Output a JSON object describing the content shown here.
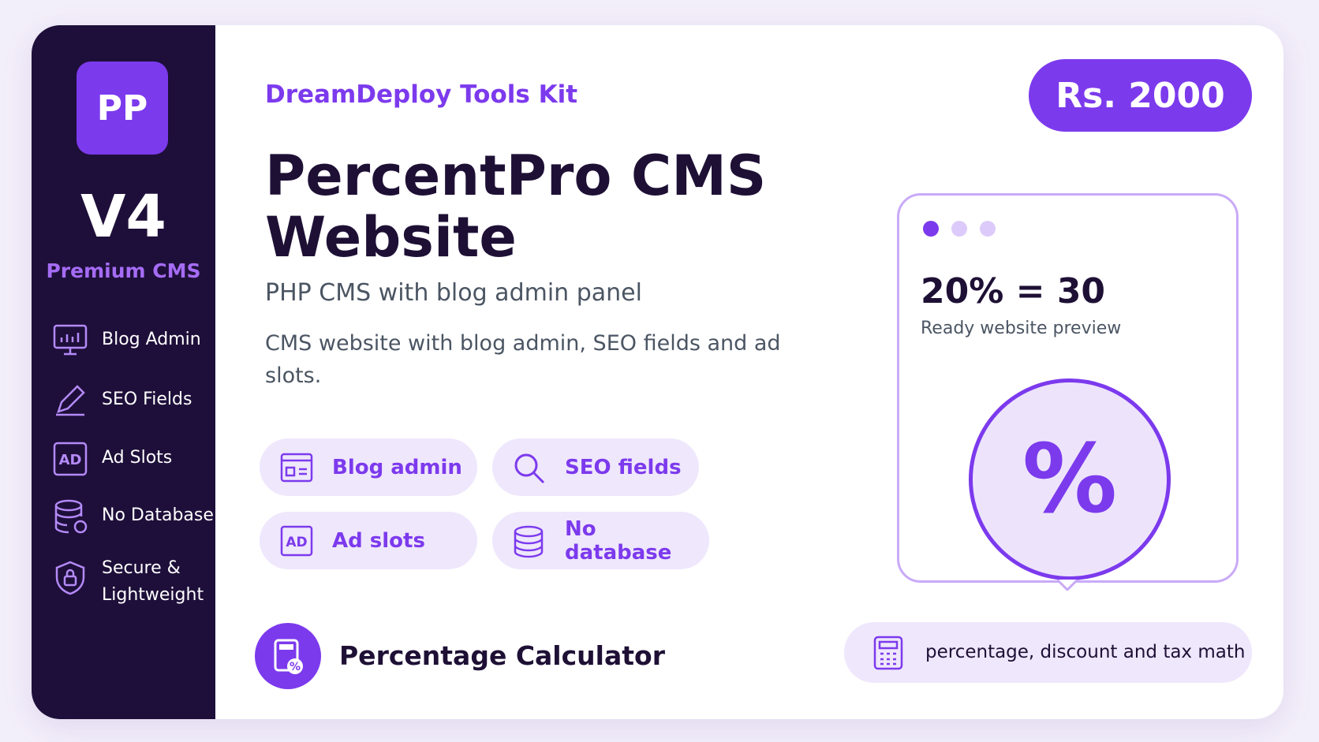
{
  "sidebar": {
    "logo": "PP",
    "version": "V4",
    "tagline": "Premium CMS",
    "features": [
      "Blog Admin",
      "SEO Fields",
      "Ad Slots",
      "No Database",
      "Secure & Lightweight"
    ]
  },
  "main": {
    "brand": "DreamDeploy Tools Kit",
    "price": "Rs. 2000",
    "title": "PercentPro CMS Website",
    "subtitle": "PHP CMS with blog admin panel",
    "description": "CMS website with blog admin, SEO fields and ad slots.",
    "tags": [
      "Blog admin",
      "SEO fields",
      "Ad slots",
      "No database"
    ],
    "footer": "Percentage Calculator"
  },
  "preview": {
    "formula": "20% = 30",
    "caption": "Ready website preview",
    "symbol": "%",
    "note": "percentage, discount and tax math"
  }
}
